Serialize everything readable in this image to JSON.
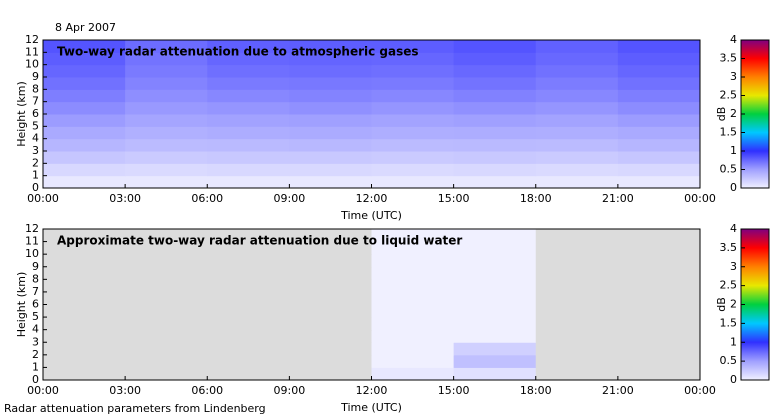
{
  "date": "8 Apr 2007",
  "footer": "Radar attenuation parameters from Lindenberg",
  "chart_data": [
    {
      "type": "heatmap",
      "title": "Two-way radar attenuation due to atmospheric gases",
      "xlabel": "Time (UTC)",
      "ylabel": "Height (km)",
      "xlim": [
        0,
        24
      ],
      "ylim": [
        0,
        12
      ],
      "xticks": [
        {
          "value": 0,
          "label": "00:00"
        },
        {
          "value": 3,
          "label": "03:00"
        },
        {
          "value": 6,
          "label": "06:00"
        },
        {
          "value": 9,
          "label": "09:00"
        },
        {
          "value": 12,
          "label": "12:00"
        },
        {
          "value": 15,
          "label": "15:00"
        },
        {
          "value": 18,
          "label": "18:00"
        },
        {
          "value": 21,
          "label": "21:00"
        },
        {
          "value": 24,
          "label": "00:00"
        }
      ],
      "yticks": [
        0,
        1,
        2,
        3,
        4,
        5,
        6,
        7,
        8,
        9,
        10,
        11,
        12
      ],
      "xbins": [
        0,
        3,
        6,
        9,
        12,
        15,
        18,
        21,
        24
      ],
      "ybins": [
        0,
        1,
        2,
        3,
        4,
        5,
        6,
        7,
        8,
        9,
        10,
        11,
        12
      ],
      "z": [
        [
          0.05,
          0.05,
          0.05,
          0.05,
          0.05,
          0.05,
          0.05,
          0.05
        ],
        [
          0.15,
          0.14,
          0.15,
          0.15,
          0.14,
          0.15,
          0.14,
          0.15
        ],
        [
          0.26,
          0.24,
          0.25,
          0.25,
          0.24,
          0.25,
          0.24,
          0.26
        ],
        [
          0.36,
          0.33,
          0.34,
          0.35,
          0.33,
          0.34,
          0.33,
          0.36
        ],
        [
          0.44,
          0.4,
          0.42,
          0.43,
          0.41,
          0.42,
          0.41,
          0.44
        ],
        [
          0.52,
          0.47,
          0.49,
          0.5,
          0.48,
          0.5,
          0.48,
          0.52
        ],
        [
          0.59,
          0.53,
          0.55,
          0.57,
          0.55,
          0.57,
          0.55,
          0.59
        ],
        [
          0.65,
          0.58,
          0.61,
          0.63,
          0.61,
          0.64,
          0.61,
          0.65
        ],
        [
          0.71,
          0.63,
          0.67,
          0.68,
          0.67,
          0.7,
          0.66,
          0.71
        ],
        [
          0.76,
          0.67,
          0.72,
          0.73,
          0.72,
          0.75,
          0.71,
          0.76
        ],
        [
          0.8,
          0.7,
          0.76,
          0.77,
          0.76,
          0.8,
          0.75,
          0.8
        ],
        [
          0.84,
          0.73,
          0.79,
          0.8,
          0.8,
          0.84,
          0.78,
          0.84
        ]
      ],
      "null_color": "#dcdcdc",
      "colorbar": {
        "label": "dB",
        "lim": [
          0,
          4
        ],
        "ticks": [
          0,
          0.5,
          1,
          1.5,
          2,
          2.5,
          3,
          3.5,
          4
        ],
        "colors": [
          "#f0f0ff",
          "#a0a0ff",
          "#3030ff",
          "#00c8ff",
          "#00d040",
          "#e8e800",
          "#ff8000",
          "#ff0000",
          "#800080"
        ]
      }
    },
    {
      "type": "heatmap",
      "title": "Approximate two-way radar attenuation due to liquid water",
      "xlabel": "Time (UTC)",
      "ylabel": "Height (km)",
      "xlim": [
        0,
        24
      ],
      "ylim": [
        0,
        12
      ],
      "xticks": [
        {
          "value": 0,
          "label": "00:00"
        },
        {
          "value": 3,
          "label": "03:00"
        },
        {
          "value": 6,
          "label": "06:00"
        },
        {
          "value": 9,
          "label": "09:00"
        },
        {
          "value": 12,
          "label": "12:00"
        },
        {
          "value": 15,
          "label": "15:00"
        },
        {
          "value": 18,
          "label": "18:00"
        },
        {
          "value": 21,
          "label": "21:00"
        },
        {
          "value": 24,
          "label": "00:00"
        }
      ],
      "yticks": [
        0,
        1,
        2,
        3,
        4,
        5,
        6,
        7,
        8,
        9,
        10,
        11,
        12
      ],
      "xbins": [
        0,
        3,
        6,
        9,
        12,
        15,
        18,
        21,
        24
      ],
      "ybins": [
        0,
        1,
        2,
        3,
        4,
        5,
        6,
        7,
        8,
        9,
        10,
        11,
        12
      ],
      "z": [
        [
          null,
          null,
          null,
          null,
          0.05,
          0.1,
          null,
          null
        ],
        [
          null,
          null,
          null,
          null,
          0,
          0.3,
          null,
          null
        ],
        [
          null,
          null,
          null,
          null,
          0,
          0.2,
          null,
          null
        ],
        [
          null,
          null,
          null,
          null,
          0,
          0,
          null,
          null
        ],
        [
          null,
          null,
          null,
          null,
          0,
          0,
          null,
          null
        ],
        [
          null,
          null,
          null,
          null,
          0,
          0,
          null,
          null
        ],
        [
          null,
          null,
          null,
          null,
          0,
          0,
          null,
          null
        ],
        [
          null,
          null,
          null,
          null,
          0,
          0,
          null,
          null
        ],
        [
          null,
          null,
          null,
          null,
          0,
          0,
          null,
          null
        ],
        [
          null,
          null,
          null,
          null,
          0,
          0,
          null,
          null
        ],
        [
          null,
          null,
          null,
          null,
          0,
          0,
          null,
          null
        ],
        [
          null,
          null,
          null,
          null,
          0,
          0,
          null,
          null
        ]
      ],
      "null_color": "#dcdcdc",
      "colorbar": {
        "label": "dB",
        "lim": [
          0,
          4
        ],
        "ticks": [
          0,
          0.5,
          1,
          1.5,
          2,
          2.5,
          3,
          3.5,
          4
        ],
        "colors": [
          "#f0f0ff",
          "#a0a0ff",
          "#3030ff",
          "#00c8ff",
          "#00d040",
          "#e8e800",
          "#ff8000",
          "#ff0000",
          "#800080"
        ]
      }
    }
  ]
}
